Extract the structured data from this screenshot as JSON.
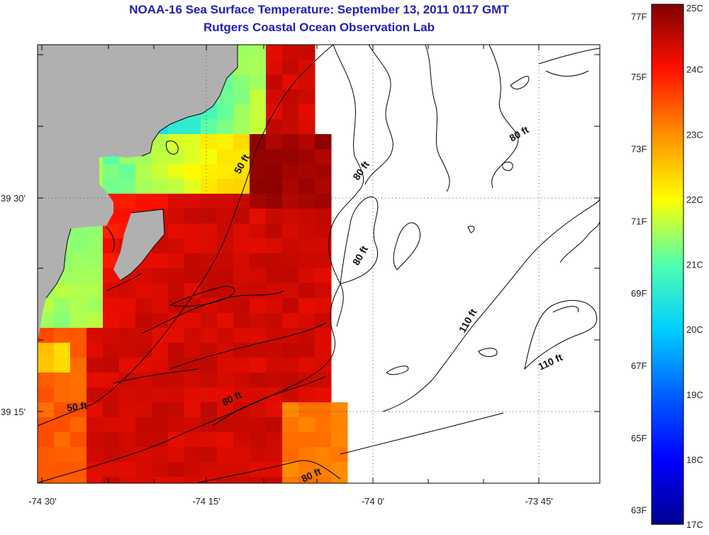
{
  "header": {
    "title": "NOAA-16 Sea Surface Temperature:  September 13, 2011 0117 GMT",
    "subtitle": "Rutgers Coastal Ocean Observation Lab"
  },
  "colors": {
    "title": "#1e1ebe",
    "land": "#b0b0b0",
    "contour": "#000000",
    "missing_data": "#ffffff"
  },
  "map": {
    "lon_ticks": [
      "-74 30'",
      "-74 15'",
      "-74 0'",
      "-73 45'"
    ],
    "lat_ticks": [
      "39 30'",
      "39 15'"
    ],
    "gridlines": "dotted",
    "contour_labels": [
      {
        "text": "50 ft"
      },
      {
        "text": "50 ft"
      },
      {
        "text": "80 ft"
      },
      {
        "text": "80 ft"
      },
      {
        "text": "80 ft"
      },
      {
        "text": "80 ft"
      },
      {
        "text": "80 ft"
      },
      {
        "text": "110 ft"
      },
      {
        "text": "110 ft"
      }
    ]
  },
  "legend": {
    "celsius_labels": [
      "25C",
      "24C",
      "23C",
      "22C",
      "21C",
      "20C",
      "19C",
      "18C",
      "17C"
    ],
    "fahrenheit_labels": [
      "77F",
      "75F",
      "73F",
      "71F",
      "69F",
      "67F",
      "65F",
      "63F"
    ],
    "range_c": [
      17,
      25
    ]
  }
}
